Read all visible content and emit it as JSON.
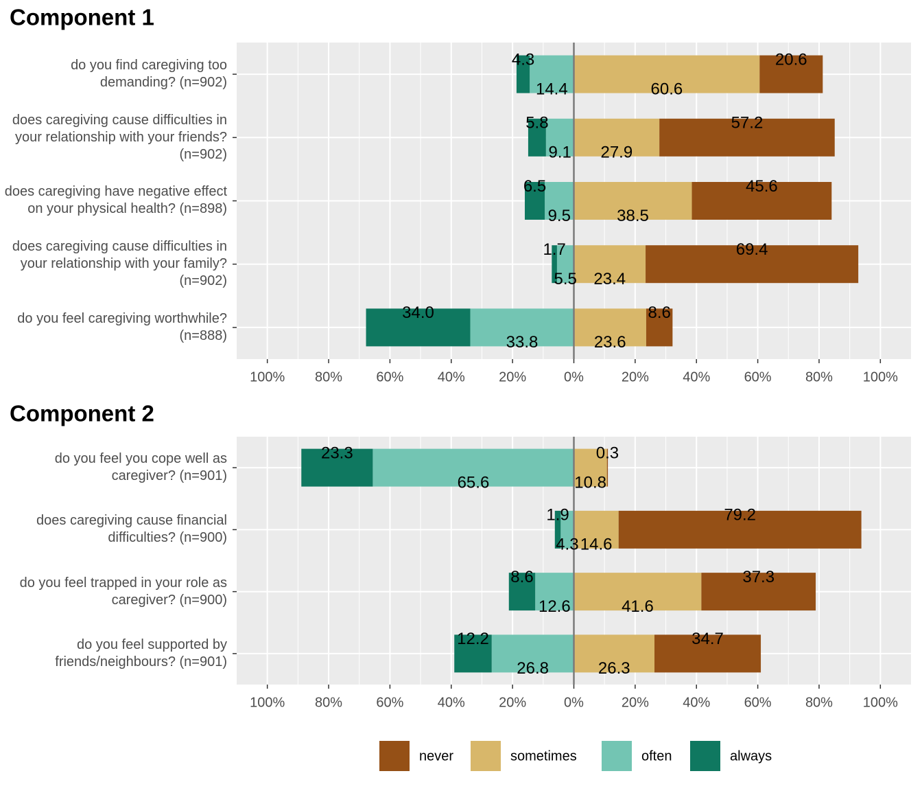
{
  "chart_data": [
    {
      "type": "diverging-bar",
      "title": "Component 1",
      "categories": [
        "do you find caregiving too demanding? (n=902)",
        "does caregiving cause difficulties in your relationship with your friends? (n=902)",
        "does caregiving have negative effect on your physical health? (n=898)",
        "does caregiving cause difficulties in your relationship with your family? (n=902)",
        "do you feel caregiving worthwhile? (n=888)"
      ],
      "series": [
        {
          "name": "never",
          "color": "#955016",
          "side": "right",
          "values": [
            20.6,
            57.2,
            45.6,
            69.4,
            8.6
          ]
        },
        {
          "name": "sometimes",
          "color": "#d8b76a",
          "side": "right",
          "values": [
            60.6,
            27.9,
            38.5,
            23.4,
            23.6
          ]
        },
        {
          "name": "often",
          "color": "#73c5b3",
          "side": "left",
          "values": [
            14.4,
            9.1,
            9.5,
            5.5,
            33.8
          ]
        },
        {
          "name": "always",
          "color": "#0f7860",
          "side": "left",
          "values": [
            4.3,
            5.8,
            6.5,
            1.7,
            34.0
          ],
          "value_labels": [
            "4.3",
            "5.8",
            "6.5",
            "1.7",
            "34.0"
          ]
        }
      ],
      "xlim": [
        -110,
        110
      ],
      "xticks": [
        {
          "value": -100,
          "label": "100%"
        },
        {
          "value": -80,
          "label": "80%"
        },
        {
          "value": -60,
          "label": "60%"
        },
        {
          "value": -40,
          "label": "40%"
        },
        {
          "value": -20,
          "label": "20%"
        },
        {
          "value": 0,
          "label": "0%"
        },
        {
          "value": 20,
          "label": "20%"
        },
        {
          "value": 40,
          "label": "40%"
        },
        {
          "value": 60,
          "label": "60%"
        },
        {
          "value": 80,
          "label": "80%"
        },
        {
          "value": 100,
          "label": "100%"
        }
      ],
      "grid": true,
      "legend": "bottom"
    },
    {
      "type": "diverging-bar",
      "title": "Component 2",
      "categories": [
        "do you feel you cope well as caregiver? (n=901)",
        "does caregiving cause financial difficulties? (n=900)",
        "do you feel trapped in your role as caregiver? (n=900)",
        "do you feel supported by friends/neighbours? (n=901)"
      ],
      "series": [
        {
          "values": [
            0.3,
            79.2,
            37.3,
            34.7
          ]
        },
        {
          "values": [
            10.8,
            14.6,
            41.6,
            26.3
          ]
        },
        {
          "values": [
            65.6,
            4.3,
            12.6,
            26.8
          ]
        },
        {
          "values": [
            23.3,
            1.9,
            8.6,
            12.2
          ]
        }
      ],
      "xlim": [
        -110,
        110
      ],
      "xticks": [
        {
          "value": -100,
          "label": "100%"
        },
        {
          "value": -80,
          "label": "80%"
        },
        {
          "value": -60,
          "label": "60%"
        },
        {
          "value": -40,
          "label": "40%"
        },
        {
          "value": -20,
          "label": "20%"
        },
        {
          "value": 0,
          "label": "0%"
        },
        {
          "value": 20,
          "label": "20%"
        },
        {
          "value": 40,
          "label": "40%"
        },
        {
          "value": 60,
          "label": "60%"
        },
        {
          "value": 80,
          "label": "80%"
        },
        {
          "value": 100,
          "label": "100%"
        }
      ],
      "grid": true
    }
  ]
}
